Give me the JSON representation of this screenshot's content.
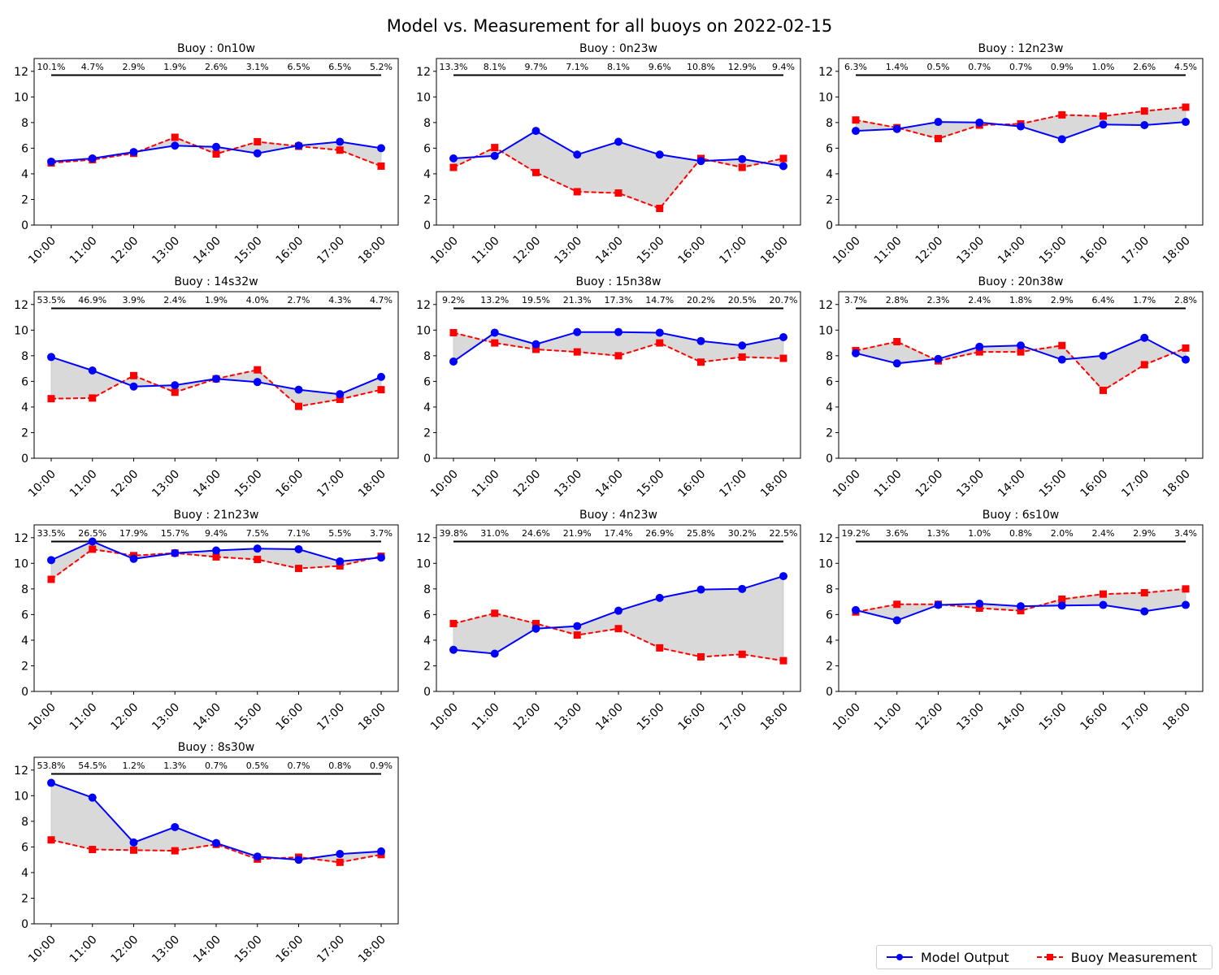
{
  "figure": {
    "title": "Model vs. Measurement for all buoys on 2022-02-15",
    "legend": [
      "Model Output",
      "Buoy Measurement"
    ],
    "legend_position": "bottom-right"
  },
  "colors": {
    "model": "#0000ff",
    "measurement": "#ff0000",
    "fill": "#d9d9d9",
    "bar": "#000000"
  },
  "chart_data": [
    {
      "type": "line",
      "title": "Buoy : 0n10w",
      "categories": [
        "10:00",
        "11:00",
        "12:00",
        "13:00",
        "14:00",
        "15:00",
        "16:00",
        "17:00",
        "18:00"
      ],
      "series": [
        {
          "name": "Model Output",
          "values": [
            4.95,
            5.2,
            5.7,
            6.2,
            6.1,
            5.6,
            6.2,
            6.5,
            6.0
          ]
        },
        {
          "name": "Buoy Measurement",
          "values": [
            4.85,
            5.1,
            5.6,
            6.85,
            5.55,
            6.5,
            6.15,
            5.85,
            4.6
          ]
        }
      ],
      "annotations": [
        "10.1%",
        "4.7%",
        "2.9%",
        "1.9%",
        "2.6%",
        "3.1%",
        "6.5%",
        "6.5%",
        "5.2%"
      ],
      "ylim": [
        0,
        13
      ],
      "yticks": [
        0,
        2,
        4,
        6,
        8,
        10,
        12
      ]
    },
    {
      "type": "line",
      "title": "Buoy : 0n23w",
      "categories": [
        "10:00",
        "11:00",
        "12:00",
        "13:00",
        "14:00",
        "15:00",
        "16:00",
        "17:00",
        "18:00"
      ],
      "series": [
        {
          "name": "Model Output",
          "values": [
            5.2,
            5.4,
            7.35,
            5.5,
            6.5,
            5.5,
            5.0,
            5.15,
            4.6
          ]
        },
        {
          "name": "Buoy Measurement",
          "values": [
            4.5,
            6.05,
            4.1,
            2.6,
            2.5,
            1.3,
            5.2,
            4.5,
            5.2
          ]
        }
      ],
      "annotations": [
        "13.3%",
        "8.1%",
        "9.7%",
        "7.1%",
        "8.1%",
        "9.6%",
        "10.8%",
        "12.9%",
        "9.4%"
      ],
      "ylim": [
        0,
        13
      ],
      "yticks": [
        0,
        2,
        4,
        6,
        8,
        10,
        12
      ]
    },
    {
      "type": "line",
      "title": "Buoy : 12n23w",
      "categories": [
        "10:00",
        "11:00",
        "12:00",
        "13:00",
        "14:00",
        "15:00",
        "16:00",
        "17:00",
        "18:00"
      ],
      "series": [
        {
          "name": "Model Output",
          "values": [
            7.35,
            7.5,
            8.05,
            8.0,
            7.7,
            6.7,
            7.85,
            7.8,
            8.05
          ]
        },
        {
          "name": "Buoy Measurement",
          "values": [
            8.2,
            7.6,
            6.75,
            7.8,
            7.9,
            8.6,
            8.5,
            8.9,
            9.2
          ]
        }
      ],
      "annotations": [
        "6.3%",
        "1.4%",
        "0.5%",
        "0.7%",
        "0.7%",
        "0.9%",
        "1.0%",
        "2.6%",
        "4.5%"
      ],
      "ylim": [
        0,
        13
      ],
      "yticks": [
        0,
        2,
        4,
        6,
        8,
        10,
        12
      ]
    },
    {
      "type": "line",
      "title": "Buoy : 14s32w",
      "categories": [
        "10:00",
        "11:00",
        "12:00",
        "13:00",
        "14:00",
        "15:00",
        "16:00",
        "17:00",
        "18:00"
      ],
      "series": [
        {
          "name": "Model Output",
          "values": [
            7.9,
            6.85,
            5.6,
            5.7,
            6.2,
            5.95,
            5.35,
            5.0,
            6.35
          ]
        },
        {
          "name": "Buoy Measurement",
          "values": [
            4.65,
            4.7,
            6.45,
            5.15,
            6.2,
            6.9,
            4.05,
            4.6,
            5.35
          ]
        }
      ],
      "annotations": [
        "53.5%",
        "46.9%",
        "3.9%",
        "2.4%",
        "1.9%",
        "4.0%",
        "2.7%",
        "4.3%",
        "4.7%"
      ],
      "ylim": [
        0,
        13
      ],
      "yticks": [
        0,
        2,
        4,
        6,
        8,
        10,
        12
      ]
    },
    {
      "type": "line",
      "title": "Buoy : 15n38w",
      "categories": [
        "10:00",
        "11:00",
        "12:00",
        "13:00",
        "14:00",
        "15:00",
        "16:00",
        "17:00",
        "18:00"
      ],
      "series": [
        {
          "name": "Model Output",
          "values": [
            7.55,
            9.8,
            8.9,
            9.85,
            9.85,
            9.8,
            9.15,
            8.8,
            9.45
          ]
        },
        {
          "name": "Buoy Measurement",
          "values": [
            9.8,
            9.0,
            8.5,
            8.3,
            8.0,
            9.0,
            7.5,
            7.9,
            7.8
          ]
        }
      ],
      "annotations": [
        "9.2%",
        "13.2%",
        "19.5%",
        "21.3%",
        "17.3%",
        "14.7%",
        "20.2%",
        "20.5%",
        "20.7%"
      ],
      "ylim": [
        0,
        13
      ],
      "yticks": [
        0,
        2,
        4,
        6,
        8,
        10,
        12
      ]
    },
    {
      "type": "line",
      "title": "Buoy : 20n38w",
      "categories": [
        "10:00",
        "11:00",
        "12:00",
        "13:00",
        "14:00",
        "15:00",
        "16:00",
        "17:00",
        "18:00"
      ],
      "series": [
        {
          "name": "Model Output",
          "values": [
            8.2,
            7.4,
            7.75,
            8.7,
            8.8,
            7.7,
            8.0,
            9.4,
            7.7
          ]
        },
        {
          "name": "Buoy Measurement",
          "values": [
            8.4,
            9.1,
            7.6,
            8.3,
            8.3,
            8.8,
            5.3,
            7.3,
            8.6
          ]
        }
      ],
      "annotations": [
        "3.7%",
        "2.8%",
        "2.3%",
        "2.4%",
        "1.8%",
        "2.9%",
        "6.4%",
        "1.7%",
        "2.8%"
      ],
      "ylim": [
        0,
        13
      ],
      "yticks": [
        0,
        2,
        4,
        6,
        8,
        10,
        12
      ]
    },
    {
      "type": "line",
      "title": "Buoy : 21n23w",
      "categories": [
        "10:00",
        "11:00",
        "12:00",
        "13:00",
        "14:00",
        "15:00",
        "16:00",
        "17:00",
        "18:00"
      ],
      "series": [
        {
          "name": "Model Output",
          "values": [
            10.25,
            11.7,
            10.35,
            10.8,
            11.0,
            11.15,
            11.1,
            10.15,
            10.45
          ]
        },
        {
          "name": "Buoy Measurement",
          "values": [
            8.75,
            11.1,
            10.6,
            10.8,
            10.5,
            10.3,
            9.6,
            9.8,
            10.55
          ]
        }
      ],
      "annotations": [
        "33.5%",
        "26.5%",
        "17.9%",
        "15.7%",
        "9.4%",
        "7.5%",
        "7.1%",
        "5.5%",
        "3.7%"
      ],
      "ylim": [
        0,
        13
      ],
      "yticks": [
        0,
        2,
        4,
        6,
        8,
        10,
        12
      ]
    },
    {
      "type": "line",
      "title": "Buoy : 4n23w",
      "categories": [
        "10:00",
        "11:00",
        "12:00",
        "13:00",
        "14:00",
        "15:00",
        "16:00",
        "17:00",
        "18:00"
      ],
      "series": [
        {
          "name": "Model Output",
          "values": [
            3.25,
            2.95,
            4.9,
            5.1,
            6.3,
            7.3,
            7.95,
            8.0,
            9.0
          ]
        },
        {
          "name": "Buoy Measurement",
          "values": [
            5.3,
            6.1,
            5.3,
            4.4,
            4.9,
            3.4,
            2.7,
            2.9,
            2.4
          ]
        }
      ],
      "annotations": [
        "39.8%",
        "31.0%",
        "24.6%",
        "21.9%",
        "17.4%",
        "26.9%",
        "25.8%",
        "30.2%",
        "22.5%"
      ],
      "ylim": [
        0,
        13
      ],
      "yticks": [
        0,
        2,
        4,
        6,
        8,
        10,
        12
      ]
    },
    {
      "type": "line",
      "title": "Buoy : 6s10w",
      "categories": [
        "10:00",
        "11:00",
        "12:00",
        "13:00",
        "14:00",
        "15:00",
        "16:00",
        "17:00",
        "18:00"
      ],
      "series": [
        {
          "name": "Model Output",
          "values": [
            6.35,
            5.55,
            6.75,
            6.85,
            6.65,
            6.7,
            6.75,
            6.25,
            6.75
          ]
        },
        {
          "name": "Buoy Measurement",
          "values": [
            6.2,
            6.8,
            6.8,
            6.5,
            6.3,
            7.2,
            7.6,
            7.7,
            8.0
          ]
        }
      ],
      "annotations": [
        "19.2%",
        "3.6%",
        "1.3%",
        "1.0%",
        "0.8%",
        "2.0%",
        "2.4%",
        "2.9%",
        "3.4%"
      ],
      "ylim": [
        0,
        13
      ],
      "yticks": [
        0,
        2,
        4,
        6,
        8,
        10,
        12
      ]
    },
    {
      "type": "line",
      "title": "Buoy : 8s30w",
      "categories": [
        "10:00",
        "11:00",
        "12:00",
        "13:00",
        "14:00",
        "15:00",
        "16:00",
        "17:00",
        "18:00"
      ],
      "series": [
        {
          "name": "Model Output",
          "values": [
            11.0,
            9.85,
            6.35,
            7.55,
            6.3,
            5.25,
            5.0,
            5.45,
            5.65
          ]
        },
        {
          "name": "Buoy Measurement",
          "values": [
            6.55,
            5.8,
            5.75,
            5.7,
            6.2,
            5.05,
            5.2,
            4.8,
            5.4
          ]
        }
      ],
      "annotations": [
        "53.8%",
        "54.5%",
        "1.2%",
        "1.3%",
        "0.7%",
        "0.5%",
        "0.7%",
        "0.8%",
        "0.9%"
      ],
      "ylim": [
        0,
        13
      ],
      "yticks": [
        0,
        2,
        4,
        6,
        8,
        10,
        12
      ]
    }
  ]
}
